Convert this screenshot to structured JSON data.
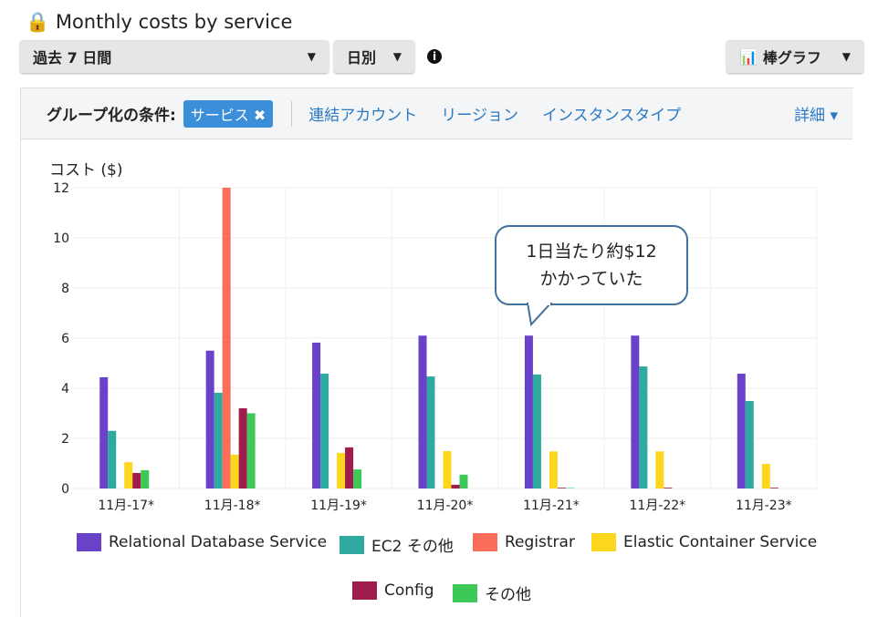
{
  "header": {
    "title": "Monthly costs by service",
    "range": "過去 7 日間",
    "granularity": "日別",
    "chart_type": "棒グラフ"
  },
  "group_by": {
    "label": "グループ化の条件:",
    "chip": "サービス",
    "options": [
      "連結アカウント",
      "リージョン",
      "インスタンスタイプ"
    ],
    "more": "詳細"
  },
  "callout": {
    "line1": "1日当たり約$12",
    "line2": "かかっていた"
  },
  "chart_data": {
    "type": "bar",
    "ylabel": "コスト ($)",
    "ylim": [
      0,
      12
    ],
    "yticks": [
      0,
      2,
      4,
      6,
      8,
      10,
      12
    ],
    "categories": [
      "11月-17*",
      "11月-18*",
      "11月-19*",
      "11月-20*",
      "11月-21*",
      "11月-22*",
      "11月-23*"
    ],
    "series": [
      {
        "name": "Relational Database Service",
        "color": "#6a42c9",
        "values": [
          4.44,
          5.5,
          5.82,
          6.1,
          6.1,
          6.1,
          4.58
        ]
      },
      {
        "name": "EC2 その他",
        "color": "#2eaaa0",
        "values": [
          2.3,
          3.82,
          4.58,
          4.47,
          4.55,
          4.87,
          3.49
        ]
      },
      {
        "name": "Registrar",
        "color": "#f96d5a",
        "values": [
          0,
          12,
          0,
          0,
          0,
          0,
          0
        ]
      },
      {
        "name": "Elastic Container Service",
        "color": "#fdd61e",
        "values": [
          1.05,
          1.35,
          1.42,
          1.49,
          1.48,
          1.48,
          0.98
        ]
      },
      {
        "name": "Config",
        "color": "#a01b4e",
        "values": [
          0.62,
          3.2,
          1.64,
          0.15,
          0.03,
          0.03,
          0.03
        ]
      },
      {
        "name": "その他",
        "color": "#3cc957",
        "values": [
          0.73,
          3.0,
          0.76,
          0.55,
          0.02,
          0,
          0
        ]
      }
    ],
    "legend": "bottom"
  }
}
